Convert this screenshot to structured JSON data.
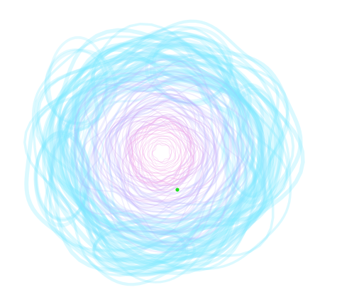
{
  "artwork": {
    "kind": "generative-spiral-tangle",
    "background": "#ffffff",
    "colors": {
      "outer": "#7fe9ff",
      "middle": "#b8b8ff",
      "inner": "#e2a0f2",
      "core": "#f3b3ee",
      "dot": "#1fdd1f"
    },
    "rings": [
      {
        "name": "outer-cyan",
        "color": "#7fe9ff",
        "opacity": 0.28,
        "strokes": 26,
        "radius_min": 0.68,
        "radius_max": 1.0,
        "width": 5
      },
      {
        "name": "mid-cyan",
        "color": "#8fe4ff",
        "opacity": 0.22,
        "strokes": 22,
        "radius_min": 0.55,
        "radius_max": 0.85,
        "width": 3.5
      },
      {
        "name": "lavender",
        "color": "#b7b4ff",
        "opacity": 0.22,
        "strokes": 24,
        "radius_min": 0.36,
        "radius_max": 0.72,
        "width": 2.5
      },
      {
        "name": "violet",
        "color": "#d5a6f5",
        "opacity": 0.28,
        "strokes": 22,
        "radius_min": 0.18,
        "radius_max": 0.5,
        "width": 1.4
      },
      {
        "name": "pink-core",
        "color": "#f2b0ec",
        "opacity": 0.45,
        "strokes": 28,
        "radius_min": 0.02,
        "radius_max": 0.28,
        "width": 0.7
      }
    ]
  }
}
